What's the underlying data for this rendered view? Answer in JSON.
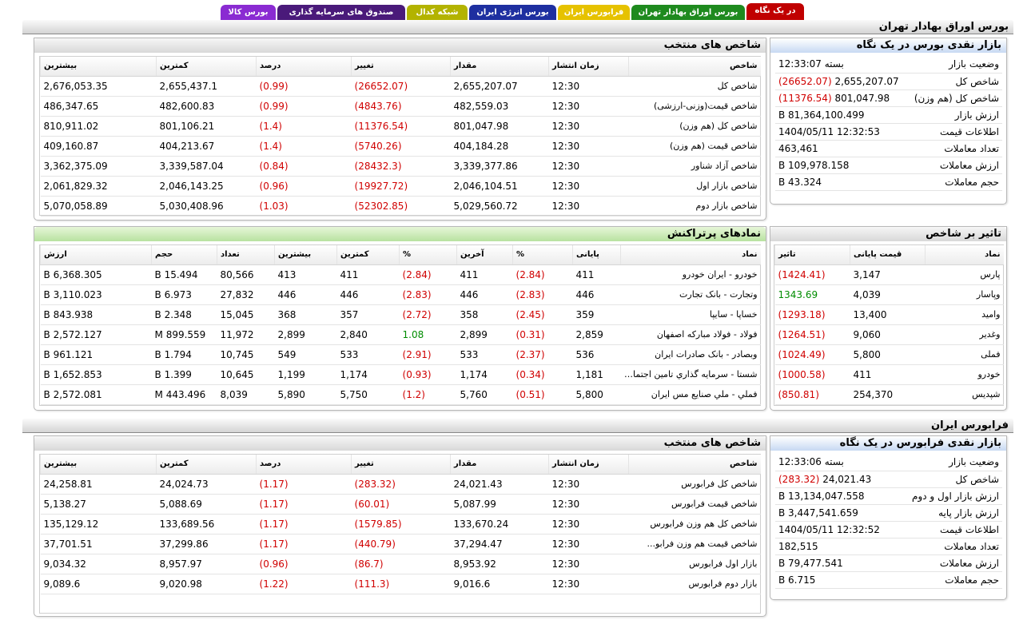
{
  "tabs": [
    {
      "label": "در یک نگاه",
      "color": "#c00000",
      "active": true
    },
    {
      "label": "بورس اوراق بهادار تهران",
      "color": "#1e8a1e"
    },
    {
      "label": "فرابورس ایران",
      "color": "#e6c200"
    },
    {
      "label": "بورس انرژی ایران",
      "color": "#1e2fa0"
    },
    {
      "label": "شبکه کدال",
      "color": "#b3b300"
    },
    {
      "label": "صندوق های سرمایه گذاری",
      "color": "#4a1a7a"
    },
    {
      "label": "بورس کالا",
      "color": "#8a2bd2"
    }
  ],
  "tse": {
    "section_title": "بورس اوراق بهادار تهران",
    "summary": {
      "title": "بازار نقدی بورس در یک نگاه",
      "rows": [
        {
          "label": "وضعیت بازار",
          "value": "بسته 12:33:07"
        },
        {
          "label": "شاخص کل",
          "value": "2,655,207.07",
          "change": "(26652.07)"
        },
        {
          "label": "شاخص کل (هم وزن)",
          "value": "801,047.98",
          "change": "(11376.54)"
        },
        {
          "label": "ارزش بازار",
          "value": "B 81,364,100.499"
        },
        {
          "label": "اطلاعات قیمت",
          "value": "1404/05/11 12:32:53"
        },
        {
          "label": "تعداد معاملات",
          "value": "463,461"
        },
        {
          "label": "ارزش معاملات",
          "value": "B 109,978.158"
        },
        {
          "label": "حجم معاملات",
          "value": "B 43.324"
        }
      ]
    },
    "indices": {
      "title": "شاخص های منتخب",
      "headers": [
        "شاخص",
        "زمان انتشار",
        "مقدار",
        "تغییر",
        "درصد",
        "کمترین",
        "بیشترین"
      ],
      "rows": [
        [
          "شاخص کل",
          "12:30",
          "2,655,207.07",
          "(26652.07)",
          "(0.99)",
          "2,655,437.1",
          "2,676,053.35"
        ],
        [
          "شاخص قیمت(وزنی-ارزشی)",
          "12:30",
          "482,559.03",
          "(4843.76)",
          "(0.99)",
          "482,600.83",
          "486,347.65"
        ],
        [
          "شاخص کل (هم وزن)",
          "12:30",
          "801,047.98",
          "(11376.54)",
          "(1.4)",
          "801,106.21",
          "810,911.02"
        ],
        [
          "شاخص قیمت (هم وزن)",
          "12:30",
          "404,184.28",
          "(5740.26)",
          "(1.4)",
          "404,213.67",
          "409,160.87"
        ],
        [
          "شاخص آزاد شناور",
          "12:30",
          "3,339,377.86",
          "(28432.3)",
          "(0.84)",
          "3,339,587.04",
          "3,362,375.09"
        ],
        [
          "شاخص بازار اول",
          "12:30",
          "2,046,104.51",
          "(19927.72)",
          "(0.96)",
          "2,046,143.25",
          "2,061,829.32"
        ],
        [
          "شاخص بازار دوم",
          "12:30",
          "5,029,560.72",
          "(52302.85)",
          "(1.03)",
          "5,030,408.96",
          "5,070,058.89"
        ]
      ]
    },
    "impact": {
      "title": "تاثیر بر شاخص",
      "headers": [
        "نماد",
        "قیمت پایانی",
        "تاثیر"
      ],
      "rows": [
        [
          "پارس",
          "3,147",
          "(1424.41)"
        ],
        [
          "وپاسار",
          "4,039",
          "1343.69"
        ],
        [
          "وامید",
          "13,400",
          "(1293.18)"
        ],
        [
          "وغدیر",
          "9,060",
          "(1264.51)"
        ],
        [
          "فملی",
          "5,800",
          "(1024.49)"
        ],
        [
          "خودرو",
          "411",
          "(1000.58)"
        ],
        [
          "شپدیس",
          "254,370",
          "(850.81)"
        ]
      ]
    },
    "active": {
      "title": "نمادهای پرتراکنش",
      "headers": [
        "نماد",
        "پایانی",
        "%",
        "آخرین",
        "%",
        "کمترین",
        "بیشترین",
        "تعداد",
        "حجم",
        "ارزش"
      ],
      "rows": [
        [
          "خودرو - ایران خودرو",
          "411",
          "(2.84)",
          "411",
          "(2.84)",
          "411",
          "413",
          "80,566",
          "15.494 B",
          "6,368.305 B"
        ],
        [
          "وتجارت - بانک تجارت",
          "446",
          "(2.83)",
          "446",
          "(2.83)",
          "446",
          "446",
          "27,832",
          "6.973 B",
          "3,110.023 B"
        ],
        [
          "خساپا - سایپا",
          "359",
          "(2.45)",
          "358",
          "(2.72)",
          "357",
          "368",
          "15,045",
          "2.348 B",
          "843.938 B"
        ],
        [
          "فولاد - فولاد مبارکه اصفهان",
          "2,859",
          "(0.31)",
          "2,899",
          "1.08",
          "2,840",
          "2,899",
          "11,972",
          "899.559 M",
          "2,572.127 B"
        ],
        [
          "وبصادر - بانک صادرات ایران",
          "536",
          "(2.37)",
          "533",
          "(2.91)",
          "533",
          "549",
          "10,745",
          "1.794 B",
          "961.121 B"
        ],
        [
          "شستا - سرمایه گذاري تامين اجتماعي",
          "1,181",
          "(0.34)",
          "1,174",
          "(0.93)",
          "1,174",
          "1,199",
          "10,645",
          "1.399 B",
          "1,652.853 B"
        ],
        [
          "فملي - ملي صنايع مس ايران",
          "5,800",
          "(0.51)",
          "5,760",
          "(1.2)",
          "5,750",
          "5,890",
          "8,039",
          "443.496 M",
          "2,572.081 B"
        ]
      ]
    }
  },
  "ifb": {
    "section_title": "فرابورس ایران",
    "summary": {
      "title": "بازار نقدی فرابورس در یک نگاه",
      "rows": [
        {
          "label": "وضعیت بازار",
          "value": "بسته 12:33:06"
        },
        {
          "label": "شاخص کل",
          "value": "24,021.43",
          "change": "(283.32)"
        },
        {
          "label": "ارزش بازار اول و دوم",
          "value": "B 13,134,047.558"
        },
        {
          "label": "ارزش بازار پایه",
          "value": "B 3,447,541.659"
        },
        {
          "label": "اطلاعات قیمت",
          "value": "1404/05/11 12:32:52"
        },
        {
          "label": "تعداد معاملات",
          "value": "182,515"
        },
        {
          "label": "ارزش معاملات",
          "value": "B 79,477.541"
        },
        {
          "label": "حجم معاملات",
          "value": "B 6.715"
        }
      ]
    },
    "indices": {
      "title": "شاخص های منتخب",
      "headers": [
        "شاخص",
        "زمان انتشار",
        "مقدار",
        "تغییر",
        "درصد",
        "کمترین",
        "بیشترین"
      ],
      "rows": [
        [
          "شاخص کل فرابورس",
          "12:30",
          "24,021.43",
          "(283.32)",
          "(1.17)",
          "24,024.73",
          "24,258.81"
        ],
        [
          "شاخص قیمت فرابورس",
          "12:30",
          "5,087.99",
          "(60.01)",
          "(1.17)",
          "5,088.69",
          "5,138.27"
        ],
        [
          "شاخص کل هم وزن فرابورس",
          "12:30",
          "133,670.24",
          "(1579.85)",
          "(1.17)",
          "133,689.56",
          "135,129.12"
        ],
        [
          "شاخص قیمت هم وزن فرابو...",
          "12:30",
          "37,294.47",
          "(440.79)",
          "(1.17)",
          "37,299.86",
          "37,701.51"
        ],
        [
          "بازار اول فرابورس",
          "12:30",
          "8,953.92",
          "(86.7)",
          "(0.96)",
          "8,957.97",
          "9,034.32"
        ],
        [
          "بازار دوم فرابورس",
          "12:30",
          "9,016.6",
          "(111.3)",
          "(1.22)",
          "9,020.98",
          "9,089.6"
        ]
      ]
    }
  }
}
